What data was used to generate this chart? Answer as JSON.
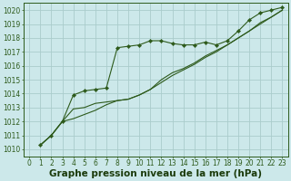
{
  "background_color": "#cce8ea",
  "grid_color": "#aacccc",
  "line_color": "#2d5a1b",
  "marker_color": "#2d5a1b",
  "xlabel": "Graphe pression niveau de la mer (hPa)",
  "xlabel_fontsize": 7.5,
  "xlim": [
    -0.5,
    23.5
  ],
  "ylim": [
    1009.5,
    1020.5
  ],
  "yticks": [
    1010,
    1011,
    1012,
    1013,
    1014,
    1015,
    1016,
    1017,
    1018,
    1019,
    1020
  ],
  "xticks": [
    0,
    1,
    2,
    3,
    4,
    5,
    6,
    7,
    8,
    9,
    10,
    11,
    12,
    13,
    14,
    15,
    16,
    17,
    18,
    19,
    20,
    21,
    22,
    23
  ],
  "series1_x": [
    1,
    2,
    3,
    4,
    5,
    6,
    7,
    8,
    9,
    10,
    11,
    12,
    13,
    14,
    15,
    16,
    17,
    18,
    19,
    20,
    21,
    22,
    23
  ],
  "series1_y": [
    1010.3,
    1011.0,
    1012.0,
    1013.9,
    1014.2,
    1014.3,
    1014.4,
    1017.3,
    1017.4,
    1017.5,
    1017.8,
    1017.8,
    1017.6,
    1017.5,
    1017.5,
    1017.7,
    1017.5,
    1017.8,
    1018.5,
    1019.3,
    1019.8,
    1020.0,
    1020.2
  ],
  "series2_x": [
    1,
    2,
    3,
    4,
    5,
    6,
    7,
    8,
    9,
    10,
    11,
    12,
    13,
    14,
    15,
    16,
    17,
    18,
    19,
    20,
    21,
    22,
    23
  ],
  "series2_y": [
    1010.3,
    1011.0,
    1012.0,
    1012.9,
    1013.0,
    1013.3,
    1013.4,
    1013.5,
    1013.6,
    1013.9,
    1014.3,
    1015.0,
    1015.5,
    1015.8,
    1016.2,
    1016.7,
    1017.1,
    1017.5,
    1018.0,
    1018.5,
    1019.1,
    1019.5,
    1020.0
  ],
  "series3_x": [
    1,
    2,
    3,
    4,
    5,
    6,
    7,
    8,
    9,
    10,
    11,
    12,
    13,
    14,
    15,
    16,
    17,
    18,
    19,
    20,
    21,
    22,
    23
  ],
  "series3_y": [
    1010.3,
    1011.0,
    1012.0,
    1012.2,
    1012.5,
    1012.8,
    1013.2,
    1013.5,
    1013.6,
    1013.9,
    1014.3,
    1014.8,
    1015.3,
    1015.7,
    1016.1,
    1016.6,
    1017.0,
    1017.5,
    1018.0,
    1018.5,
    1019.0,
    1019.5,
    1020.0
  ],
  "tick_fontsize": 5.5,
  "tick_color": "#2d5a1b",
  "spine_color": "#2d5a1b",
  "label_color": "#1a3a0a"
}
